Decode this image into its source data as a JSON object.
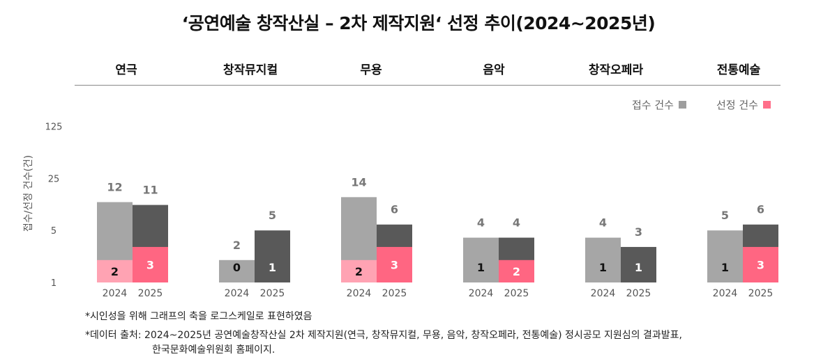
{
  "title": "‘공연예술 창작산실 – 2차 제작지원‘ 선정 추이(2024~2025년)",
  "legend": {
    "received": {
      "label": "접수 건수",
      "color": "#9e9e9e"
    },
    "selected": {
      "label": "선정 건수",
      "color": "#ff6f8a"
    }
  },
  "notes": {
    "note1": "*시인성을 위해 그래프의 축을 로그스케일로 표현하였음",
    "note2_line1": "*데이터 출처: 2024~2025년 공연예술창작산실 2차 제작지원(연극, 창작뮤지컬, 무용, 음악, 창작오페라, 전통예술) 정시공모 지원심의 결과발표,",
    "note2_line2": "한국문화예술위원회 홈페이지."
  },
  "chart_data": {
    "type": "bar",
    "scale": "log",
    "title": "‘공연예술 창작산실 – 2차 제작지원‘ 선정 추이(2024~2025년)",
    "ylabel": "접수/선정 건수(건)",
    "ylim": [
      1,
      125
    ],
    "yticks": [
      1,
      5,
      25,
      125
    ],
    "years": [
      "2024",
      "2025"
    ],
    "categories": [
      "연극",
      "창작뮤지컬",
      "무용",
      "음악",
      "창작오페라",
      "전통예술"
    ],
    "series": [
      {
        "name": "접수 건수",
        "values_2024": [
          12,
          2,
          14,
          4,
          4,
          5
        ],
        "values_2025": [
          11,
          5,
          6,
          4,
          3,
          6
        ]
      },
      {
        "name": "선정 건수",
        "values_2024": [
          2,
          0,
          2,
          1,
          1,
          1
        ],
        "values_2025": [
          3,
          1,
          3,
          2,
          1,
          3
        ]
      }
    ],
    "colors": {
      "received_2024": "#a6a6a6",
      "received_2025": "#595959",
      "selected_2024": "#ffa3b3",
      "selected_2025": "#ff6682"
    },
    "legend_position": "top-right",
    "grid": false
  }
}
